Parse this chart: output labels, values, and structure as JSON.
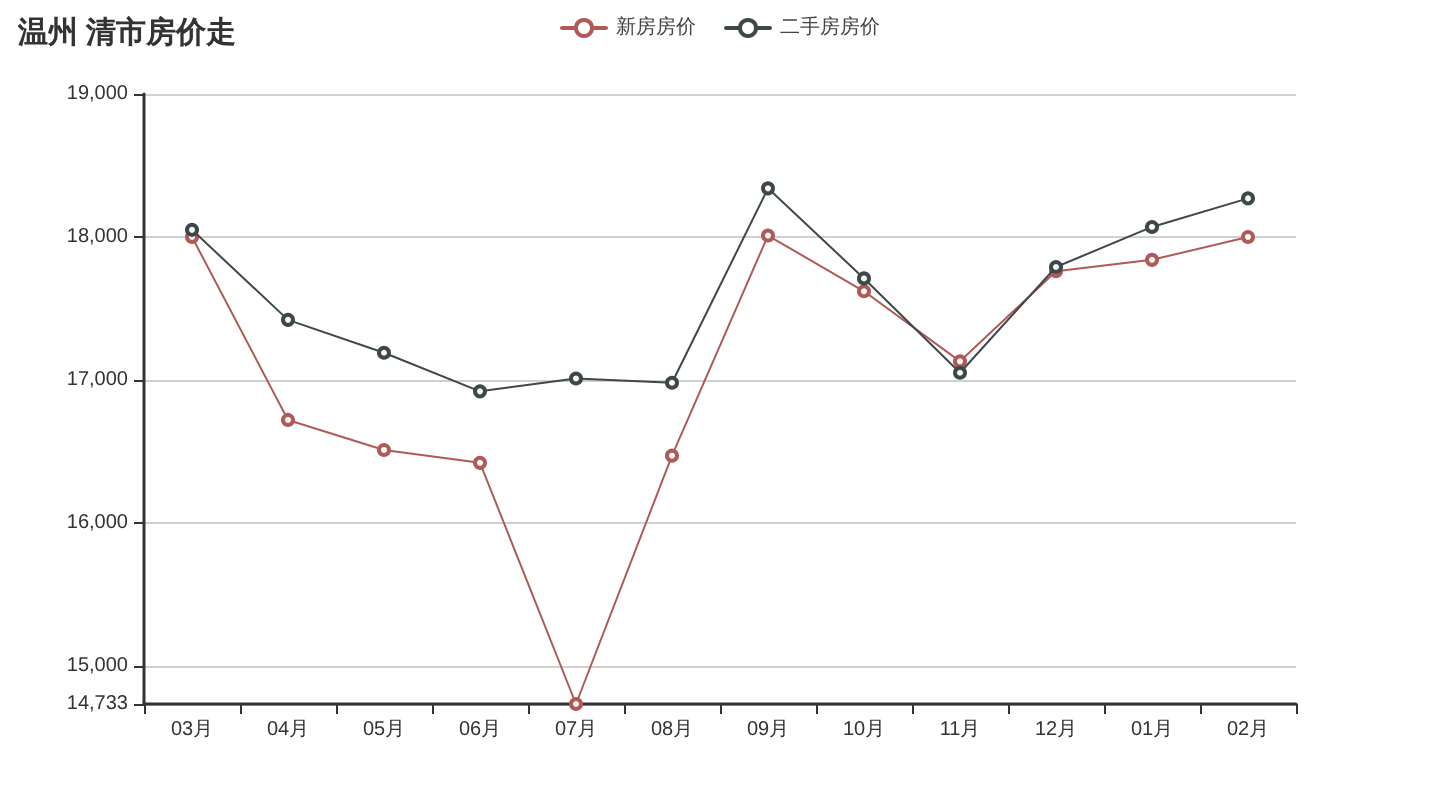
{
  "chart_data": {
    "type": "line",
    "title": "温州 清市房价走",
    "categories": [
      "03月",
      "04月",
      "05月",
      "06月",
      "07月",
      "08月",
      "09月",
      "10月",
      "11月",
      "12月",
      "01月",
      "02月"
    ],
    "series": [
      {
        "name": "新房房价",
        "color": "#b05a58",
        "values": [
          18000,
          16720,
          16510,
          16420,
          14733,
          16470,
          18010,
          17620,
          17130,
          17760,
          17840,
          18000
        ]
      },
      {
        "name": "二手房房价",
        "color": "#3f4848",
        "values": [
          18050,
          17420,
          17190,
          16920,
          17010,
          16980,
          18340,
          17710,
          17050,
          17790,
          18070,
          18270
        ]
      }
    ],
    "ylim": [
      14733,
      19000
    ],
    "yticks": [
      {
        "value": 14733,
        "label": "14,733"
      },
      {
        "value": 15000,
        "label": "15,000"
      },
      {
        "value": 16000,
        "label": "16,000"
      },
      {
        "value": 17000,
        "label": "17,000"
      },
      {
        "value": 18000,
        "label": "18,000"
      },
      {
        "value": 19000,
        "label": "19,000"
      }
    ],
    "grid": "y",
    "legend": "top",
    "marker": "circle",
    "line_style": "solid"
  }
}
